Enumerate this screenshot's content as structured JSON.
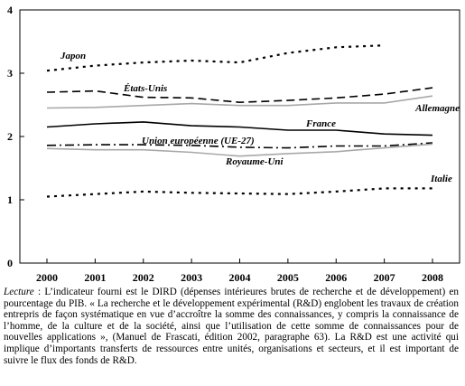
{
  "chart_data": {
    "type": "line",
    "title": "",
    "xlabel": "",
    "ylabel": "",
    "x": [
      2000,
      2001,
      2002,
      2003,
      2004,
      2005,
      2006,
      2007,
      2008
    ],
    "ylim": [
      0,
      4
    ],
    "yticks": [
      0,
      1,
      2,
      3,
      4
    ],
    "grid": false,
    "legend": "inline labels",
    "series": [
      {
        "name": "Japon",
        "color": "#000000",
        "dash": "dotted",
        "values": [
          3.04,
          3.12,
          3.17,
          3.2,
          3.17,
          3.32,
          3.41,
          3.44,
          null
        ]
      },
      {
        "name": "États-Unis",
        "color": "#000000",
        "dash": "dashed",
        "values": [
          2.7,
          2.72,
          2.62,
          2.61,
          2.54,
          2.57,
          2.61,
          2.67,
          2.77
        ]
      },
      {
        "name": "Allemagne",
        "color": "#a8a8a8",
        "dash": "solid",
        "values": [
          2.45,
          2.46,
          2.49,
          2.52,
          2.49,
          2.49,
          2.53,
          2.53,
          2.64
        ]
      },
      {
        "name": "France",
        "color": "#000000",
        "dash": "solid",
        "values": [
          2.15,
          2.2,
          2.23,
          2.17,
          2.15,
          2.1,
          2.1,
          2.04,
          2.02
        ]
      },
      {
        "name": "Union européenne (UE-27)",
        "color": "#000000",
        "dash": "dashdot",
        "values": [
          1.86,
          1.87,
          1.87,
          1.86,
          1.83,
          1.82,
          1.85,
          1.85,
          1.9
        ]
      },
      {
        "name": "Royaume-Uni",
        "color": "#a8a8a8",
        "dash": "solid",
        "values": [
          1.81,
          1.79,
          1.79,
          1.75,
          1.69,
          1.73,
          1.76,
          1.82,
          1.88
        ]
      },
      {
        "name": "Italie",
        "color": "#000000",
        "dash": "dotted",
        "values": [
          1.05,
          1.09,
          1.13,
          1.11,
          1.1,
          1.09,
          1.13,
          1.18,
          1.18
        ]
      }
    ]
  },
  "note": {
    "head": "Lecture",
    "text": " : L’indicateur fourni est le DIRD (dépenses intérieures brutes de recherche et de développement) en pourcentage du PIB. « La recherche et le développement expérimental (R&D) englobent les travaux de création entrepris de façon systématique en vue d’accroître la somme des connaissances, y compris la connaissance de l’homme, de la culture et de la société, ainsi que l’utilisation de cette somme de connaissances pour de nouvelles applications », (Manuel de Frascati, édition 2002, paragraphe 63). La R&D est une activité qui implique d’importants transferts de ressources entre unités, organisations et secteurs, et il est important de suivre le flux des fonds de R&D."
  }
}
